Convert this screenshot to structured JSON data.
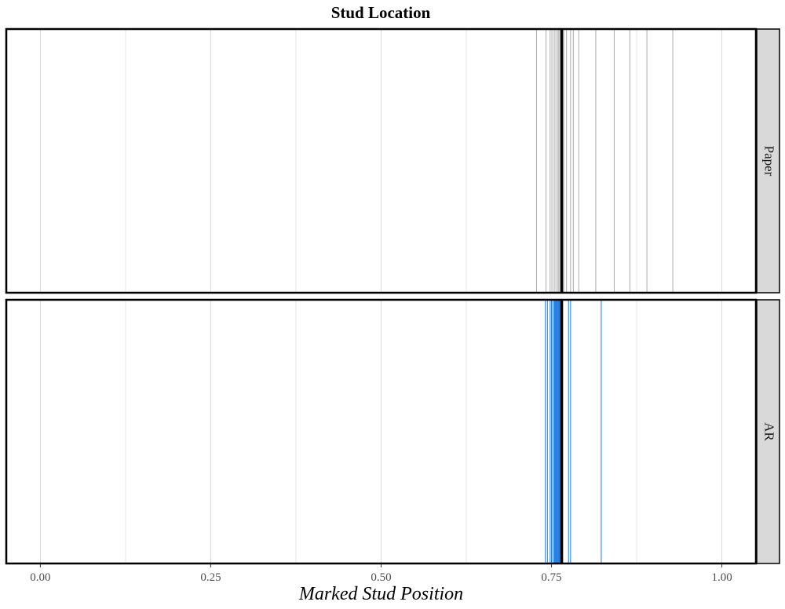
{
  "chart_data": {
    "type": "strip",
    "title": "Stud Location",
    "xlabel": "Marked Stud Position",
    "xlim": [
      -0.05,
      1.05
    ],
    "x_ticks": [
      0.0,
      0.25,
      0.5,
      0.75,
      1.0
    ],
    "x_tick_labels": [
      "0.00",
      "0.25",
      "0.50",
      "0.75",
      "1.00"
    ],
    "x_minor_ticks": [
      0.125,
      0.375,
      0.625,
      0.875
    ],
    "reference_value": 0.765,
    "panels": [
      {
        "name": "Paper",
        "color": "#aaaaaa",
        "values": [
          0.728,
          0.742,
          0.748,
          0.752,
          0.755,
          0.758,
          0.76,
          0.762,
          0.764,
          0.768,
          0.772,
          0.778,
          0.782,
          0.79,
          0.815,
          0.842,
          0.865,
          0.89,
          0.928
        ]
      },
      {
        "name": "AR",
        "color": "#1e7be0",
        "values": [
          0.741,
          0.744,
          0.748,
          0.75,
          0.752,
          0.754,
          0.755,
          0.756,
          0.757,
          0.758,
          0.759,
          0.76,
          0.761,
          0.762,
          0.763,
          0.775,
          0.778,
          0.823
        ]
      }
    ],
    "grid": true
  }
}
